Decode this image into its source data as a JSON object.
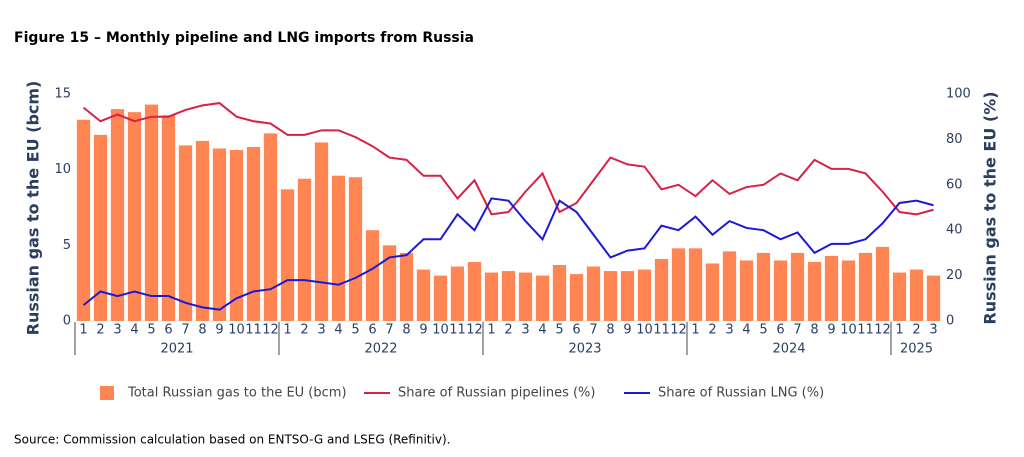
{
  "chart_data": {
    "type": "bar",
    "title": "Figure 15 – Monthly pipeline and LNG imports from Russia",
    "source": "Source: Commission calculation based on ENTSO-G and LSEG (Refinitiv).",
    "y_label": "Russian gas to the EU (bcm)",
    "y2_label": "Russian gas to the EU (%)",
    "categories": [
      "1",
      "2",
      "3",
      "4",
      "5",
      "6",
      "7",
      "8",
      "9",
      "10",
      "11",
      "12",
      "1",
      "2",
      "3",
      "4",
      "5",
      "6",
      "7",
      "8",
      "9",
      "10",
      "11",
      "12",
      "1",
      "2",
      "3",
      "4",
      "5",
      "6",
      "7",
      "8",
      "9",
      "10",
      "11",
      "12",
      "1",
      "2",
      "3",
      "4",
      "5",
      "6",
      "7",
      "8",
      "9",
      "10",
      "11",
      "12",
      "1",
      "2",
      "3"
    ],
    "years": [
      "2021",
      "2022",
      "2023",
      "2024",
      "2025"
    ],
    "ylim": [
      0,
      15
    ],
    "yticks": [
      0,
      5,
      10,
      15
    ],
    "y2lim": [
      0,
      100
    ],
    "y2ticks": [
      0,
      20,
      40,
      60,
      80,
      100
    ],
    "grid": false,
    "legend": "bottom",
    "series": [
      {
        "name": "Total Russian gas to the EU (bcm)",
        "type": "bar",
        "color": "#ff8552",
        "axis": "y",
        "values": [
          13.3,
          12.3,
          14.0,
          13.8,
          14.3,
          13.6,
          11.6,
          11.9,
          11.4,
          11.3,
          11.5,
          12.4,
          8.7,
          9.4,
          11.8,
          9.6,
          9.5,
          6.0,
          5.0,
          4.5,
          3.4,
          3.0,
          3.6,
          3.9,
          3.2,
          3.3,
          3.2,
          3.0,
          3.7,
          3.1,
          3.6,
          3.3,
          3.3,
          3.4,
          4.1,
          4.8,
          4.8,
          3.8,
          4.6,
          4.0,
          4.5,
          4.0,
          4.5,
          3.9,
          4.3,
          4.0,
          4.5,
          4.9,
          3.2,
          3.4,
          3.0
        ]
      },
      {
        "name": "Share of Russian pipelines (%)",
        "type": "line",
        "color": "#d62245",
        "axis": "y2",
        "values": [
          94,
          88,
          91,
          88,
          90,
          90,
          93,
          95,
          96,
          90,
          88,
          87,
          82,
          82,
          84,
          84,
          81,
          77,
          72,
          71,
          64,
          64,
          54,
          62,
          47,
          48,
          57,
          65,
          48,
          52,
          62,
          72,
          69,
          68,
          58,
          60,
          55,
          62,
          56,
          59,
          60,
          65,
          62,
          71,
          67,
          67,
          65,
          57,
          48,
          47,
          49
        ]
      },
      {
        "name": "Share of Russian LNG (%)",
        "type": "line",
        "color": "#1a1ad6",
        "axis": "y2",
        "values": [
          7,
          13,
          11,
          13,
          11,
          11,
          8,
          6,
          5,
          10,
          13,
          14,
          18,
          18,
          17,
          16,
          19,
          23,
          28,
          29,
          36,
          36,
          47,
          40,
          54,
          53,
          44,
          36,
          53,
          48,
          38,
          28,
          31,
          32,
          42,
          40,
          46,
          38,
          44,
          41,
          40,
          36,
          39,
          30,
          34,
          34,
          36,
          43,
          52,
          53,
          51
        ]
      }
    ]
  }
}
